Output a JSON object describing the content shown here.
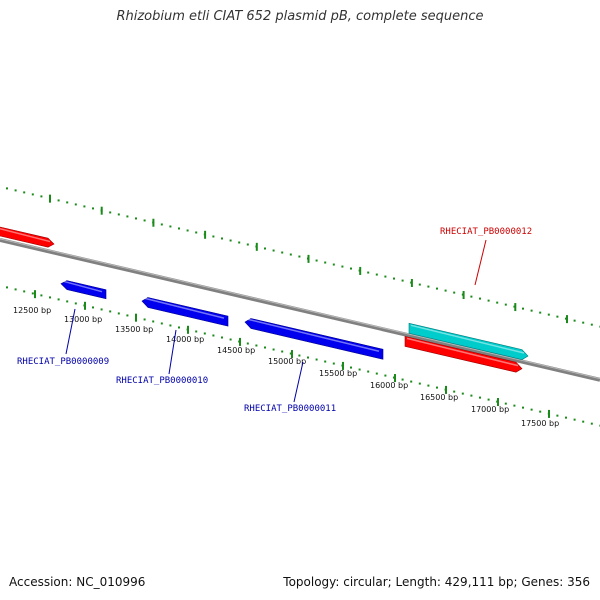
{
  "title": "Rhizobium etli CIAT 652 plasmid pB, complete sequence",
  "footer": {
    "accession": "Accession: NC_010996",
    "summary": "Topology: circular; Length: 429,111 bp; Genes: 356"
  },
  "scale": {
    "ticks": [
      {
        "bp": 12500,
        "label": "12500 bp"
      },
      {
        "bp": 13000,
        "label": "13000 bp"
      },
      {
        "bp": 13500,
        "label": "13500 bp"
      },
      {
        "bp": 14000,
        "label": "14000 bp"
      },
      {
        "bp": 14500,
        "label": "14500 bp"
      },
      {
        "bp": 15000,
        "label": "15000 bp"
      },
      {
        "bp": 15500,
        "label": "15500 bp"
      },
      {
        "bp": 16000,
        "label": "16000 bp"
      },
      {
        "bp": 16500,
        "label": "16500 bp"
      },
      {
        "bp": 17000,
        "label": "17000 bp"
      },
      {
        "bp": 17500,
        "label": "17500 bp"
      }
    ]
  },
  "features": [
    {
      "id": "f-red-left",
      "track": "outer-red",
      "color": "#ff0000",
      "strand": "+",
      "label": ""
    },
    {
      "id": "f-blue-1",
      "track": "inner-blue",
      "color": "#0000ee",
      "strand": "-",
      "label": "RHECIAT_PB0000009",
      "label_color": "#0000aa"
    },
    {
      "id": "f-blue-2",
      "track": "inner-blue",
      "color": "#0000ee",
      "strand": "-",
      "label": "RHECIAT_PB0000010",
      "label_color": "#0000aa"
    },
    {
      "id": "f-blue-3",
      "track": "inner-blue",
      "color": "#0000ee",
      "strand": "-",
      "label": "RHECIAT_PB0000011",
      "label_color": "#0000aa"
    },
    {
      "id": "f-cyan",
      "track": "outer-cyan",
      "color": "#00cccc",
      "strand": "+",
      "label": "RHECIAT_PB0000012",
      "label_color": "#cc0000"
    },
    {
      "id": "f-red-right",
      "track": "outer-red",
      "color": "#ff0000",
      "strand": "+",
      "label": ""
    }
  ],
  "colors": {
    "backbone": "#808080",
    "tick_marks": "#1a8a1a"
  }
}
